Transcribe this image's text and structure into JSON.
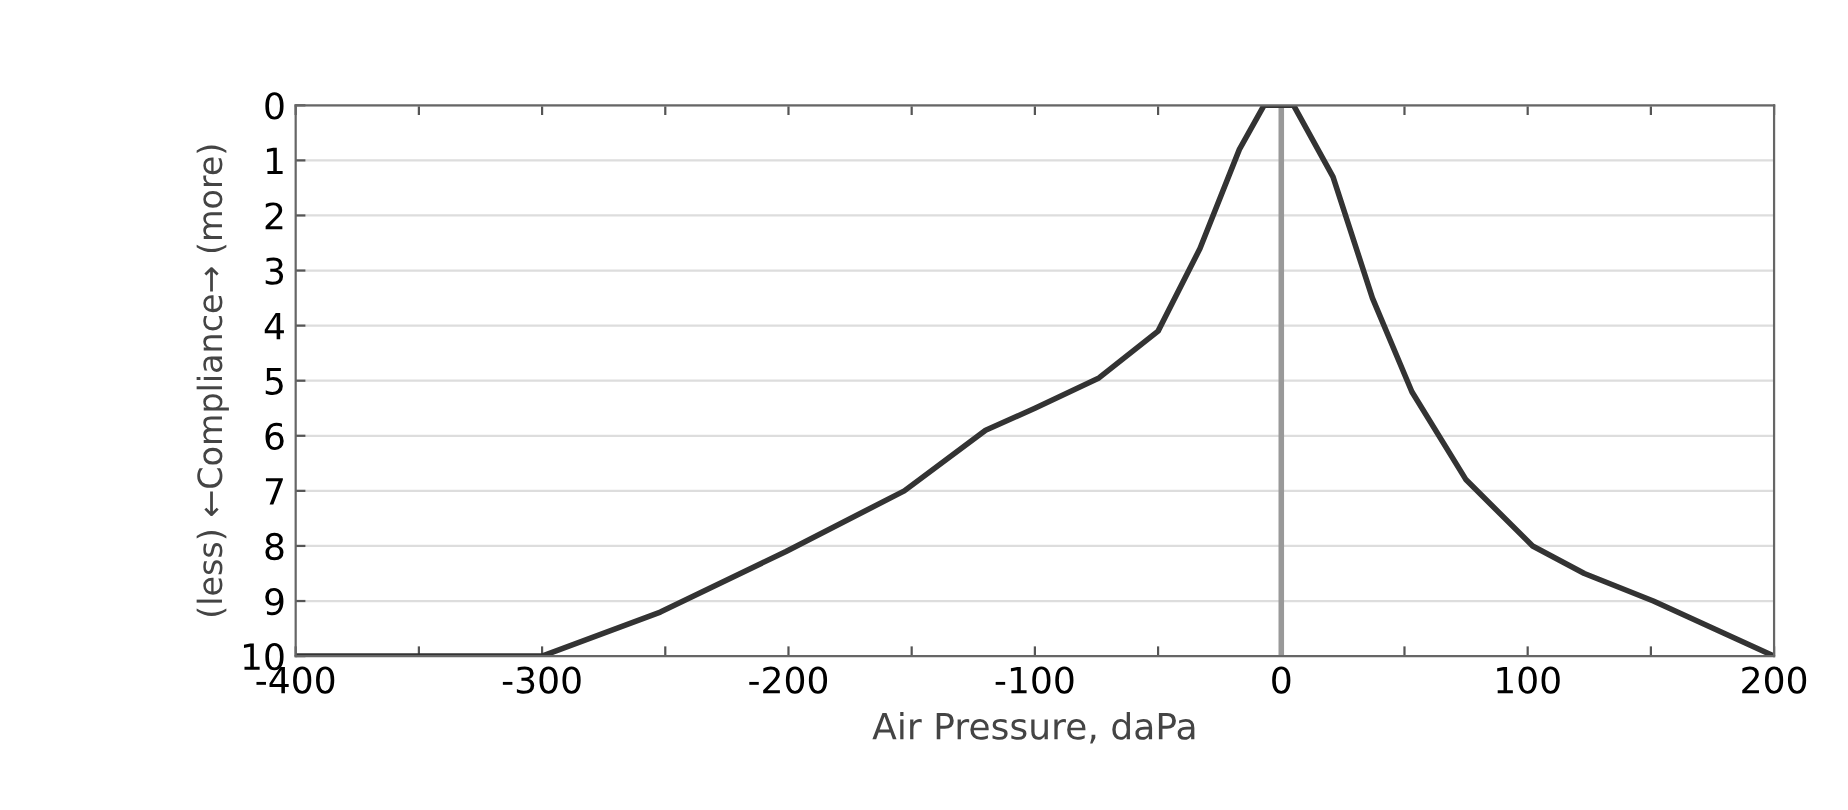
{
  "chart_data": {
    "type": "line",
    "xlabel": "Air Pressure, daPa",
    "ylabel": "(less) ←Compliance→ (more)",
    "x": [
      -400,
      -300,
      -252,
      -201,
      -153,
      -120,
      -100,
      -74,
      -50,
      -33,
      -17,
      -7,
      5,
      21,
      37,
      53,
      75,
      102,
      123,
      151,
      200
    ],
    "series": [
      {
        "color": "#333333",
        "values": [
          10,
          10,
          9.2,
          8.1,
          7.0,
          5.9,
          5.5,
          4.95,
          4.1,
          2.6,
          0.8,
          0,
          0,
          1.3,
          3.5,
          5.2,
          6.8,
          8.0,
          8.5,
          9.0,
          10
        ]
      }
    ],
    "xlim": [
      -400,
      200
    ],
    "xticks": [
      -400,
      {
        "value": -350,
        "label": null
      },
      -300,
      {
        "value": -250,
        "label": null
      },
      -200,
      {
        "value": -150,
        "label": null
      },
      -100,
      {
        "value": -50,
        "label": null
      },
      0,
      {
        "value": 50,
        "label": null
      },
      100,
      {
        "value": 150,
        "label": null
      },
      200
    ],
    "ylim": [
      10,
      0
    ],
    "yticks": [
      0,
      1,
      2,
      3,
      4,
      5,
      6,
      7,
      8,
      9,
      10
    ],
    "grid": "y",
    "legend": false,
    "marker": "none",
    "line_style": "solid",
    "ref_lines": [
      {
        "axis": "x",
        "value": 0,
        "color": "#999999"
      }
    ]
  }
}
